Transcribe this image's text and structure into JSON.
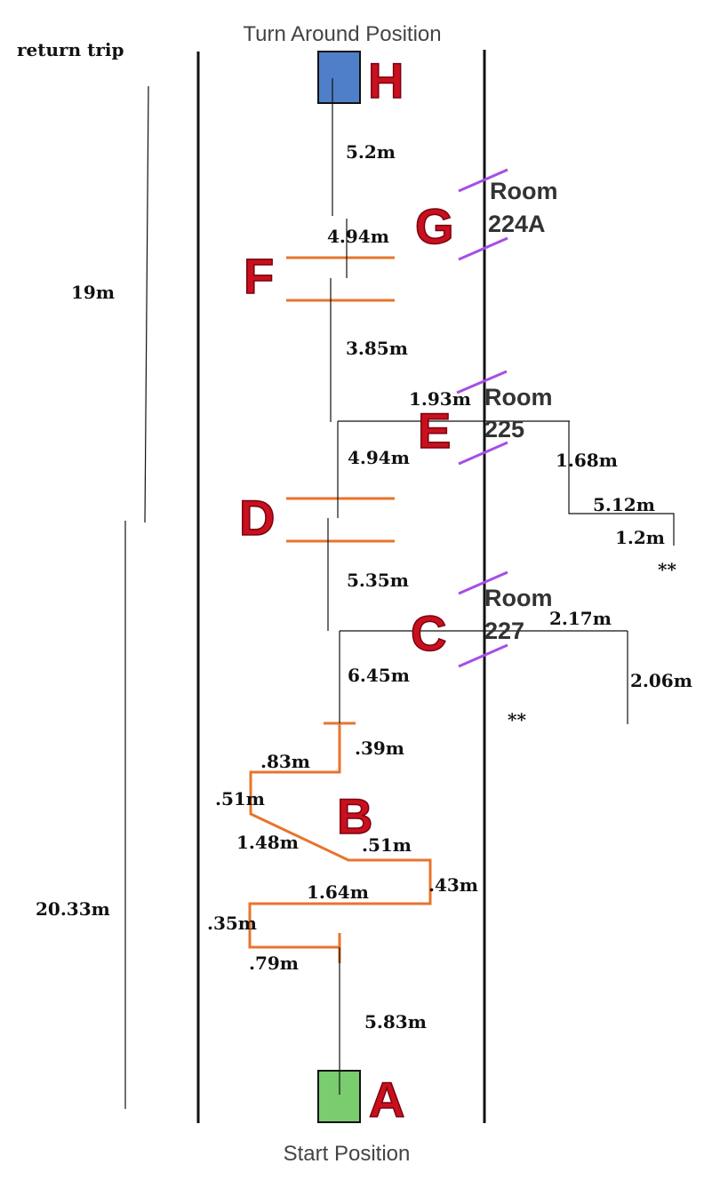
{
  "labels": {
    "turn_around": "Turn Around Position",
    "start": "Start Position",
    "return_trip": "return trip",
    "return_total": "19m",
    "outbound_total": "20.33m"
  },
  "stations": {
    "A": "A",
    "B": "B",
    "C": "C",
    "D": "D",
    "E": "E",
    "F": "F",
    "G": "G",
    "H": "H"
  },
  "rooms": {
    "r224a_line1": "Room",
    "r224a_line2": "224A",
    "r225_line1": "Room",
    "r225_line2": "225",
    "r227_line1": "Room",
    "r227_line2": "227"
  },
  "measurements": {
    "h_to_g": "5.2m",
    "g_to_f": "4.94m",
    "f_to_e": "3.85m",
    "e_offset": "1.93m",
    "e_to_d": "4.94m",
    "e_side_drop": "1.68m",
    "e_side_across": "5.12m",
    "e_side_end": "1.2m",
    "e_marker": "**",
    "d_to_c": "5.35m",
    "c_side_across": "2.17m",
    "c_side_drop": "2.06m",
    "c_marker": "**",
    "c_to_b": "6.45m",
    "b_seg_39": ".39m",
    "b_seg_83": ".83m",
    "b_seg_51a": ".51m",
    "b_seg_148": "1.48m",
    "b_seg_51b": ".51m",
    "b_seg_43": ".43m",
    "b_seg_164": "1.64m",
    "b_seg_35": ".35m",
    "b_seg_79": ".79m",
    "b_to_a": "5.83m"
  },
  "colors": {
    "wall": "#111111",
    "start_square": "#7acc6e",
    "turn_square": "#4f7fc8",
    "station_letter": "#c8101e",
    "obstacle": "#e8742c",
    "door": "#a64ee6"
  }
}
